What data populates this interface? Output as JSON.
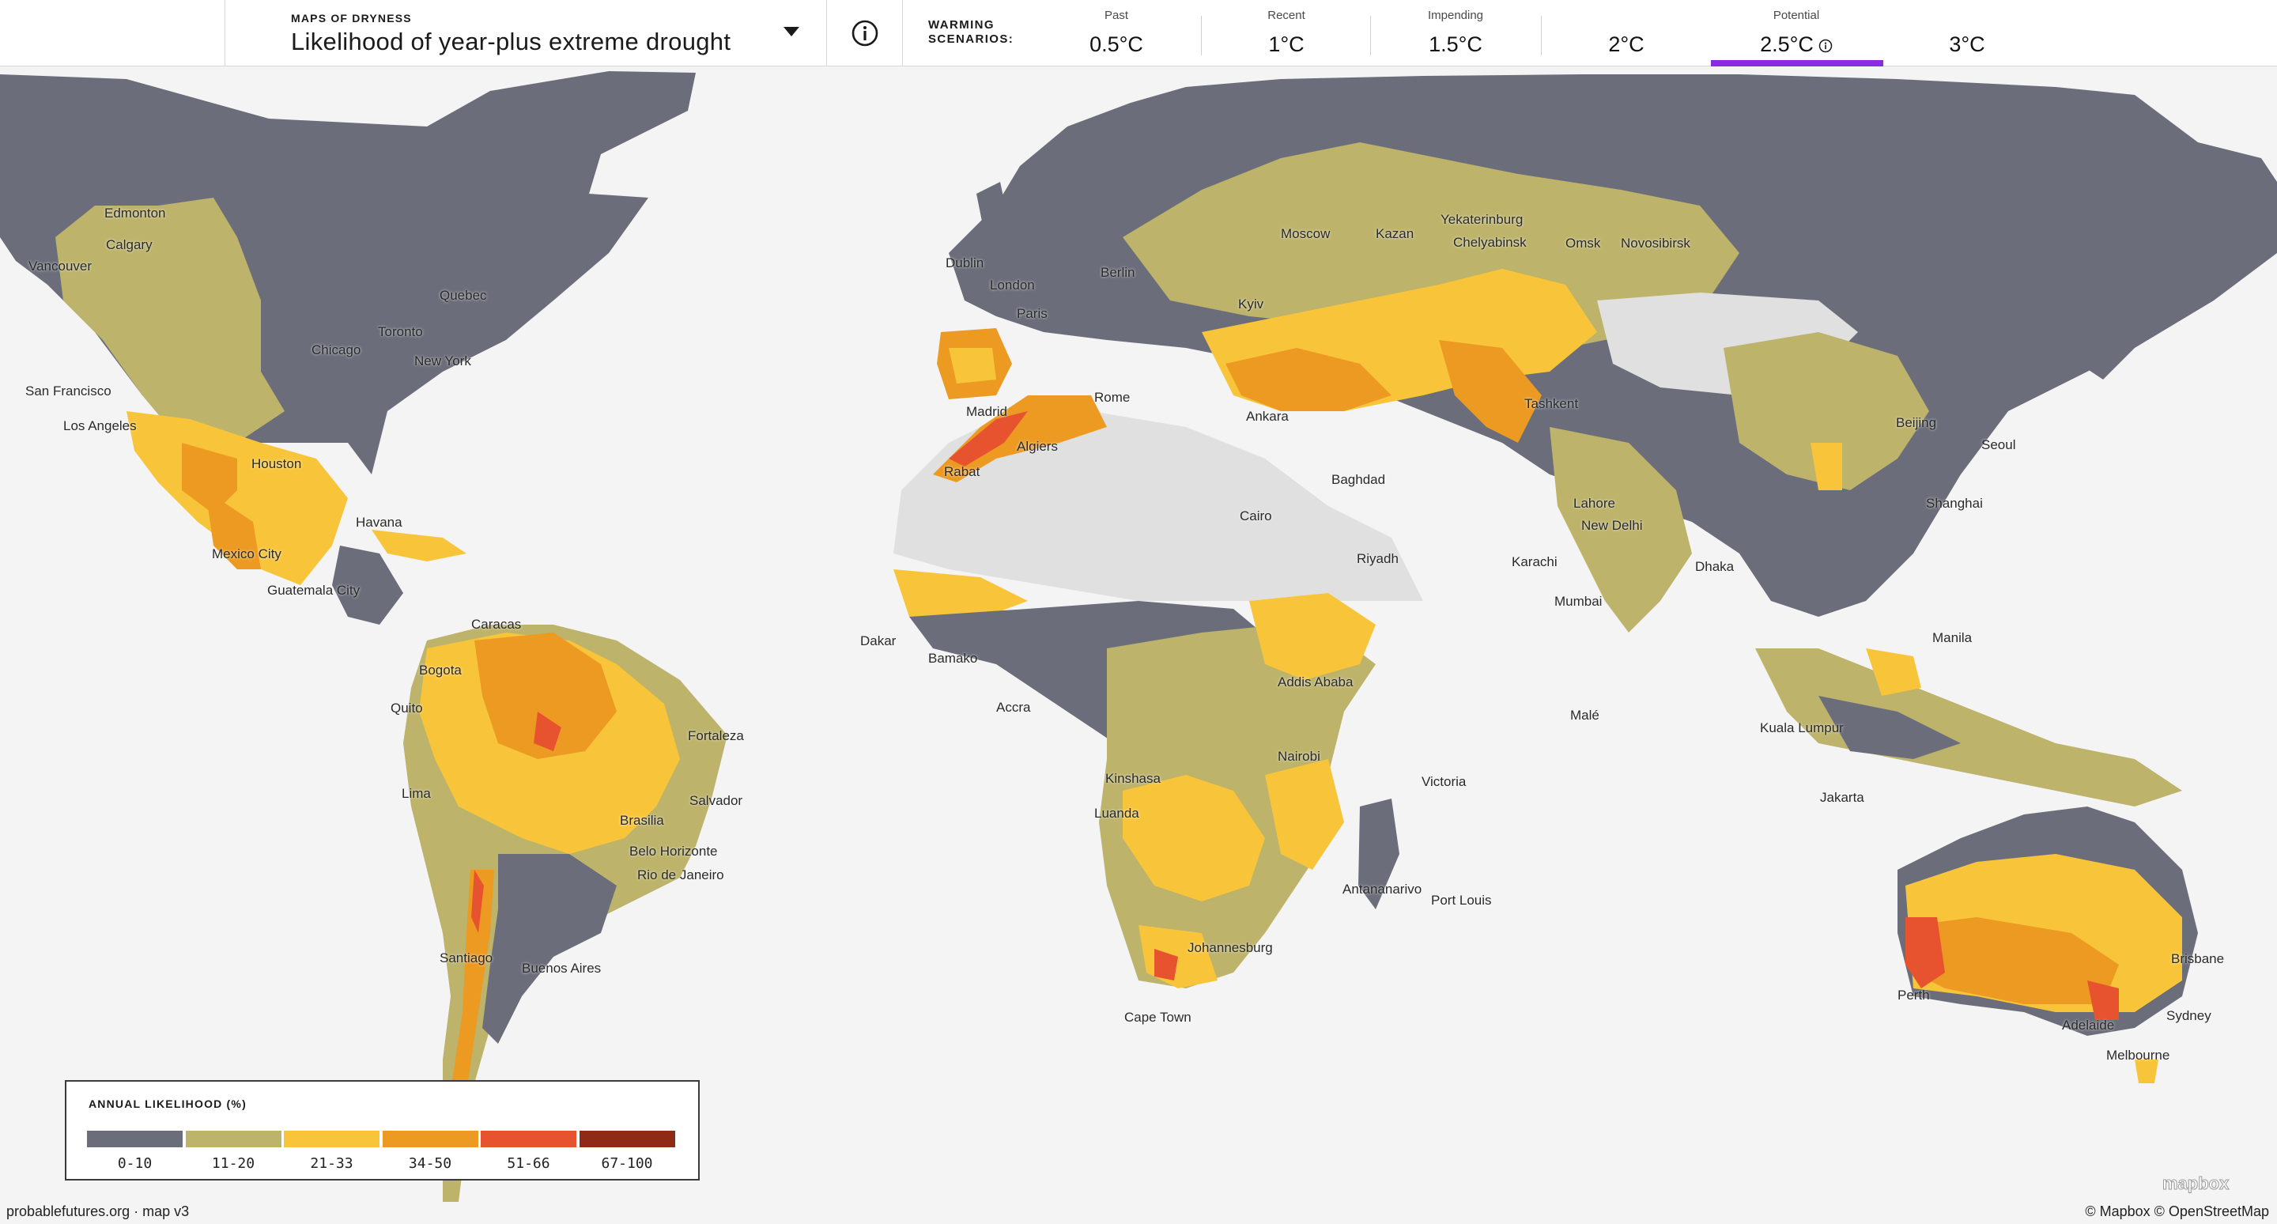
{
  "header": {
    "selector_eyebrow": "MAPS OF DRYNESS",
    "selector_title": "Likelihood of year-plus extreme drought",
    "warming_label_line1": "WARMING",
    "warming_label_line2": "SCENARIOS:",
    "scenarios": [
      {
        "name": "Past",
        "value": "0.5°C"
      },
      {
        "name": "Recent",
        "value": "1°C"
      },
      {
        "name": "Impending",
        "value": "1.5°C"
      },
      {
        "name": "",
        "value": "2°C"
      },
      {
        "name": "Potential",
        "value": "2.5°C"
      },
      {
        "name": "",
        "value": "3°C"
      }
    ],
    "active_scenario": "2.5°C"
  },
  "map": {
    "cities": [
      "Edmonton",
      "Calgary",
      "Vancouver",
      "San Francisco",
      "Los Angeles",
      "Quebec",
      "Toronto",
      "Chicago",
      "New York",
      "Houston",
      "Havana",
      "Mexico City",
      "Guatemala City",
      "Caracas",
      "Bogota",
      "Quito",
      "Lima",
      "Fortaleza",
      "Salvador",
      "Brasilia",
      "Belo Horizonte",
      "Rio de Janeiro",
      "Santiago",
      "Buenos Aires",
      "Dublin",
      "London",
      "Paris",
      "Berlin",
      "Moscow",
      "Kazan",
      "Yekaterinburg",
      "Chelyabinsk",
      "Omsk",
      "Novosibirsk",
      "Kyiv",
      "Madrid",
      "Rome",
      "Ankara",
      "Tashkent",
      "Algiers",
      "Rabat",
      "Baghdad",
      "Cairo",
      "Riyadh",
      "Lahore",
      "New Delhi",
      "Karachi",
      "Mumbai",
      "Dhaka",
      "Beijing",
      "Seoul",
      "Shanghai",
      "Manila",
      "Kuala Lumpur",
      "Jakarta",
      "Dakar",
      "Bamako",
      "Accra",
      "Addis Ababa",
      "Nairobi",
      "Kinshasa",
      "Luanda",
      "Victoria",
      "Malé",
      "Antananarivo",
      "Port Louis",
      "Johannesburg",
      "Cape Town",
      "Perth",
      "Adelaide",
      "Melbourne",
      "Sydney",
      "Brisbane"
    ]
  },
  "legend": {
    "title": "ANNUAL LIKELIHOOD (%)",
    "bins": [
      {
        "label": "0-10",
        "color": "#6b6e7a"
      },
      {
        "label": "11-20",
        "color": "#bdb36b"
      },
      {
        "label": "21-33",
        "color": "#f8c53a"
      },
      {
        "label": "34-50",
        "color": "#ec9a22"
      },
      {
        "label": "51-66",
        "color": "#e8532f"
      },
      {
        "label": "67-100",
        "color": "#8e2a16"
      }
    ]
  },
  "footer": {
    "left": "probablefutures.org · map v3",
    "right": "© Mapbox © OpenStreetMap",
    "logo": "mapbox"
  }
}
